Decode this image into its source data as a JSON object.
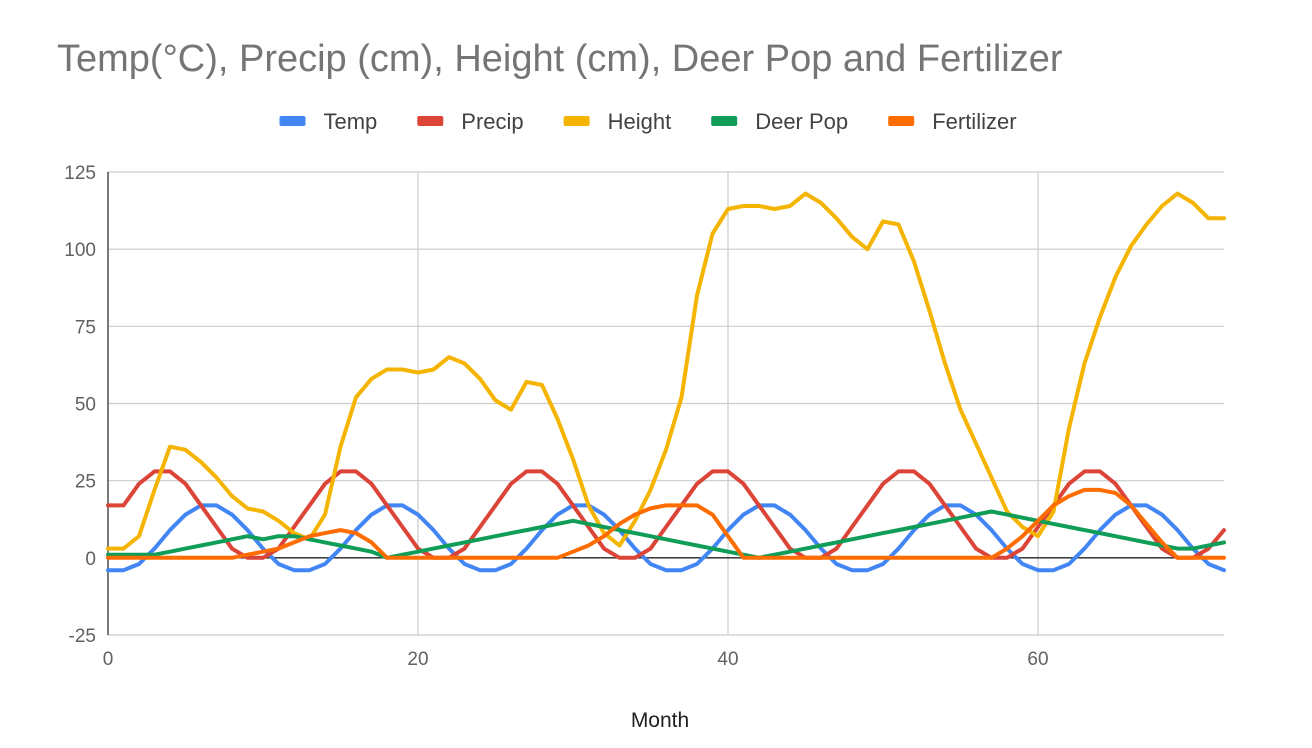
{
  "chart_data": {
    "type": "line",
    "title": "Temp(°C), Precip (cm), Height (cm), Deer Pop and Fertilizer",
    "xlabel": "Month",
    "ylabel": "",
    "xlim": [
      0,
      72
    ],
    "ylim": [
      -25,
      125
    ],
    "xticks": [
      0,
      20,
      40,
      60
    ],
    "yticks": [
      -25,
      0,
      25,
      50,
      75,
      100,
      125
    ],
    "grid": true,
    "legend_position": "top",
    "x": [
      0,
      1,
      2,
      3,
      4,
      5,
      6,
      7,
      8,
      9,
      10,
      11,
      12,
      13,
      14,
      15,
      16,
      17,
      18,
      19,
      20,
      21,
      22,
      23,
      24,
      25,
      26,
      27,
      28,
      29,
      30,
      31,
      32,
      33,
      34,
      35,
      36,
      37,
      38,
      39,
      40,
      41,
      42,
      43,
      44,
      45,
      46,
      47,
      48,
      49,
      50,
      51,
      52,
      53,
      54,
      55,
      56,
      57,
      58,
      59,
      60,
      61,
      62,
      63,
      64,
      65,
      66,
      67,
      68,
      69,
      70,
      71,
      72
    ],
    "series": [
      {
        "name": "Temp",
        "color": "#4285f4",
        "values": [
          -4,
          -4,
          -2,
          3,
          9,
          14,
          17,
          17,
          14,
          9,
          3,
          -2,
          -4,
          -4,
          -2,
          3,
          9,
          14,
          17,
          17,
          14,
          9,
          3,
          -2,
          -4,
          -4,
          -2,
          3,
          9,
          14,
          17,
          17,
          14,
          9,
          3,
          -2,
          -4,
          -4,
          -2,
          3,
          9,
          14,
          17,
          17,
          14,
          9,
          3,
          -2,
          -4,
          -4,
          -2,
          3,
          9,
          14,
          17,
          17,
          14,
          9,
          3,
          -2,
          -4,
          -4,
          -2,
          3,
          9,
          14,
          17,
          17,
          14,
          9,
          3,
          -2,
          -4
        ]
      },
      {
        "name": "Precip",
        "color": "#db4437",
        "values": [
          17,
          17,
          24,
          28,
          28,
          24,
          17,
          10,
          3,
          0,
          0,
          3,
          10,
          17,
          24,
          28,
          28,
          24,
          17,
          10,
          3,
          0,
          0,
          3,
          10,
          17,
          24,
          28,
          28,
          24,
          17,
          10,
          3,
          0,
          0,
          3,
          10,
          17,
          24,
          28,
          28,
          24,
          17,
          10,
          3,
          0,
          0,
          3,
          10,
          17,
          24,
          28,
          28,
          24,
          17,
          10,
          3,
          0,
          0,
          3,
          10,
          17,
          24,
          28,
          28,
          24,
          17,
          10,
          3,
          0,
          0,
          3,
          9
        ]
      },
      {
        "name": "Height",
        "color": "#f4b400",
        "values": [
          3,
          3,
          7,
          22,
          36,
          35,
          31,
          26,
          20,
          16,
          15,
          12,
          8,
          6,
          14,
          36,
          52,
          58,
          61,
          61,
          60,
          61,
          65,
          63,
          58,
          51,
          48,
          57,
          56,
          45,
          32,
          17,
          8,
          4,
          12,
          22,
          35,
          52,
          85,
          105,
          113,
          114,
          114,
          113,
          114,
          118,
          115,
          110,
          104,
          100,
          109,
          108,
          96,
          80,
          63,
          48,
          37,
          26,
          15,
          10,
          7,
          15,
          42,
          63,
          78,
          91,
          101,
          108,
          114,
          118,
          115,
          110,
          110
        ]
      },
      {
        "name": "Deer Pop",
        "color": "#0f9d58",
        "values": [
          1,
          1,
          1,
          1,
          2,
          3,
          4,
          5,
          6,
          7,
          6,
          7,
          7,
          6,
          5,
          4,
          3,
          2,
          0,
          1,
          2,
          3,
          4,
          5,
          6,
          7,
          8,
          9,
          10,
          11,
          12,
          11,
          10,
          9,
          8,
          7,
          6,
          5,
          4,
          3,
          2,
          1,
          0,
          1,
          2,
          3,
          4,
          5,
          6,
          7,
          8,
          9,
          10,
          11,
          12,
          13,
          14,
          15,
          14,
          13,
          12,
          11,
          10,
          9,
          8,
          7,
          6,
          5,
          4,
          3,
          3,
          4,
          5
        ]
      },
      {
        "name": "Fertilizer",
        "color": "#ff6d00",
        "values": [
          0,
          0,
          0,
          0,
          0,
          0,
          0,
          0,
          0,
          1,
          2,
          3,
          5,
          7,
          8,
          9,
          8,
          5,
          0,
          0,
          0,
          0,
          0,
          0,
          0,
          0,
          0,
          0,
          0,
          0,
          2,
          4,
          7,
          11,
          14,
          16,
          17,
          17,
          17,
          14,
          7,
          0,
          0,
          0,
          0,
          0,
          0,
          0,
          0,
          0,
          0,
          0,
          0,
          0,
          0,
          0,
          0,
          0,
          3,
          7,
          12,
          17,
          20,
          22,
          22,
          21,
          17,
          11,
          5,
          0,
          0,
          0,
          0
        ]
      }
    ]
  }
}
